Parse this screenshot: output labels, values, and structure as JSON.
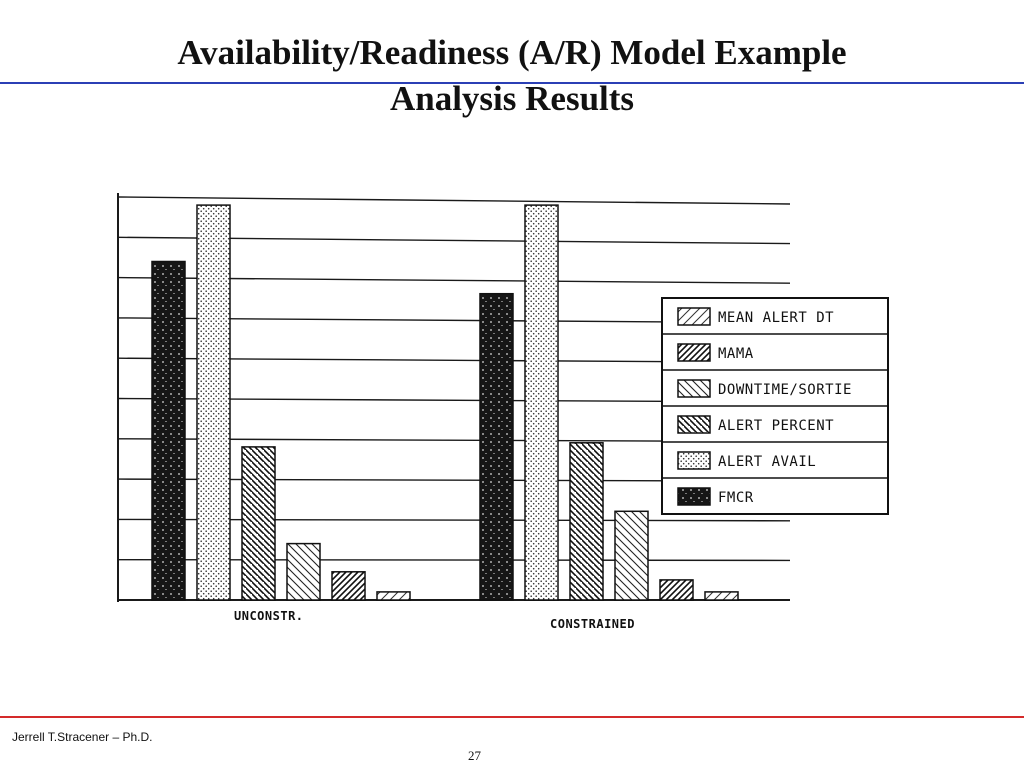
{
  "slide": {
    "title_line1": "Availability/Readiness (A/R) Model Example",
    "title_line2": "Analysis Results",
    "author": "Jerrell T.Stracener – Ph.D.",
    "page_number": "27"
  },
  "colors": {
    "title_rule": "#2b3fb5",
    "footer_rule": "#d42a2a"
  },
  "chart_data": {
    "type": "bar",
    "title": "",
    "xlabel": "",
    "ylabel": "",
    "categories": [
      "UNCONSTR.",
      "CONSTRAINED"
    ],
    "series": [
      {
        "name": "FMCR",
        "pattern": "solid-dark",
        "values": [
          84,
          76
        ]
      },
      {
        "name": "ALERT AVAIL",
        "pattern": "dots",
        "values": [
          98,
          98
        ]
      },
      {
        "name": "ALERT PERCENT",
        "pattern": "dense-back-hatch",
        "values": [
          38,
          39
        ]
      },
      {
        "name": "DOWNTIME/SORTIE",
        "pattern": "back-hatch",
        "values": [
          14,
          22
        ]
      },
      {
        "name": "MAMA",
        "pattern": "forward-hatch",
        "values": [
          7,
          5
        ]
      },
      {
        "name": "MEAN ALERT DT",
        "pattern": "light-forward-hatch",
        "values": [
          2,
          2
        ]
      }
    ],
    "legend_order": [
      "MEAN ALERT DT",
      "MAMA",
      "DOWNTIME/SORTIE",
      "ALERT PERCENT",
      "ALERT AVAIL",
      "FMCR"
    ],
    "legend_position": "right",
    "ylim": [
      0,
      100
    ],
    "grid": true
  }
}
